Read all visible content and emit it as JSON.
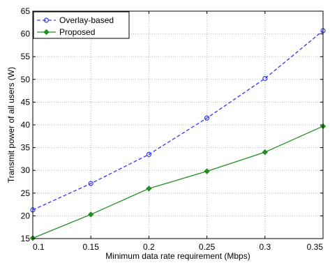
{
  "chart_data": {
    "type": "line",
    "xlabel": "Minimum data rate requirement (Mbps)",
    "ylabel": "Transmit power of all users (W)",
    "x": [
      0.1,
      0.15,
      0.2,
      0.25,
      0.3,
      0.35
    ],
    "x_ticks": [
      "0.1",
      "0.15",
      "0.2",
      "0.25",
      "0.3",
      "0.35"
    ],
    "xlim": [
      0.1,
      0.35
    ],
    "y_ticks": [
      "15",
      "20",
      "25",
      "30",
      "35",
      "40",
      "45",
      "50",
      "55",
      "60",
      "65"
    ],
    "ylim": [
      15,
      65
    ],
    "grid": true,
    "legend_position": "top-left",
    "series": [
      {
        "name": "Overlay-based",
        "values": [
          21.3,
          27.1,
          33.5,
          41.5,
          50.2,
          60.7
        ],
        "color": "#3333ff",
        "line": "dashed",
        "marker": "circle"
      },
      {
        "name": "Proposed",
        "values": [
          15.1,
          20.3,
          26.0,
          29.8,
          34.0,
          39.7
        ],
        "color": "#209020",
        "line": "solid",
        "marker": "diamond"
      }
    ]
  }
}
